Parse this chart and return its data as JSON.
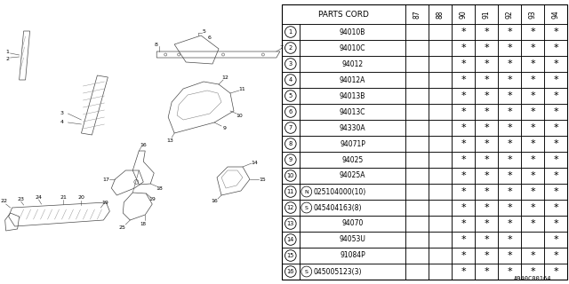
{
  "diagram_code": "A940C00164",
  "col_header": "PARTS CORD",
  "year_cols": [
    "87",
    "88",
    "90",
    "91",
    "92",
    "93",
    "94"
  ],
  "rows": [
    {
      "num": 1,
      "prefix": "",
      "code": "94010B",
      "stars": [
        0,
        0,
        1,
        1,
        1,
        1,
        1
      ]
    },
    {
      "num": 2,
      "prefix": "",
      "code": "94010C",
      "stars": [
        0,
        0,
        1,
        1,
        1,
        1,
        1
      ]
    },
    {
      "num": 3,
      "prefix": "",
      "code": "94012",
      "stars": [
        0,
        0,
        1,
        1,
        1,
        1,
        1
      ]
    },
    {
      "num": 4,
      "prefix": "",
      "code": "94012A",
      "stars": [
        0,
        0,
        1,
        1,
        1,
        1,
        1
      ]
    },
    {
      "num": 5,
      "prefix": "",
      "code": "94013B",
      "stars": [
        0,
        0,
        1,
        1,
        1,
        1,
        1
      ]
    },
    {
      "num": 6,
      "prefix": "",
      "code": "94013C",
      "stars": [
        0,
        0,
        1,
        1,
        1,
        1,
        1
      ]
    },
    {
      "num": 7,
      "prefix": "",
      "code": "94330A",
      "stars": [
        0,
        0,
        1,
        1,
        1,
        1,
        1
      ]
    },
    {
      "num": 8,
      "prefix": "",
      "code": "94071P",
      "stars": [
        0,
        0,
        1,
        1,
        1,
        1,
        1
      ]
    },
    {
      "num": 9,
      "prefix": "",
      "code": "94025",
      "stars": [
        0,
        0,
        1,
        1,
        1,
        1,
        1
      ]
    },
    {
      "num": 10,
      "prefix": "",
      "code": "94025A",
      "stars": [
        0,
        0,
        1,
        1,
        1,
        1,
        1
      ]
    },
    {
      "num": 11,
      "prefix": "N",
      "code": "025104000(10)",
      "stars": [
        0,
        0,
        1,
        1,
        1,
        1,
        1
      ]
    },
    {
      "num": 12,
      "prefix": "S",
      "code": "045404163(8)",
      "stars": [
        0,
        0,
        1,
        1,
        1,
        1,
        1
      ]
    },
    {
      "num": 13,
      "prefix": "",
      "code": "94070",
      "stars": [
        0,
        0,
        1,
        1,
        1,
        1,
        1
      ]
    },
    {
      "num": 14,
      "prefix": "",
      "code": "94053U",
      "stars": [
        0,
        0,
        1,
        1,
        1,
        0,
        1
      ]
    },
    {
      "num": 15,
      "prefix": "",
      "code": "91084P",
      "stars": [
        0,
        0,
        1,
        1,
        1,
        1,
        1
      ]
    },
    {
      "num": 16,
      "prefix": "S",
      "code": "045005123(3)",
      "stars": [
        0,
        0,
        1,
        1,
        1,
        1,
        1
      ]
    }
  ],
  "bg_color": "#ffffff",
  "line_color": "#000000",
  "text_color": "#000000"
}
